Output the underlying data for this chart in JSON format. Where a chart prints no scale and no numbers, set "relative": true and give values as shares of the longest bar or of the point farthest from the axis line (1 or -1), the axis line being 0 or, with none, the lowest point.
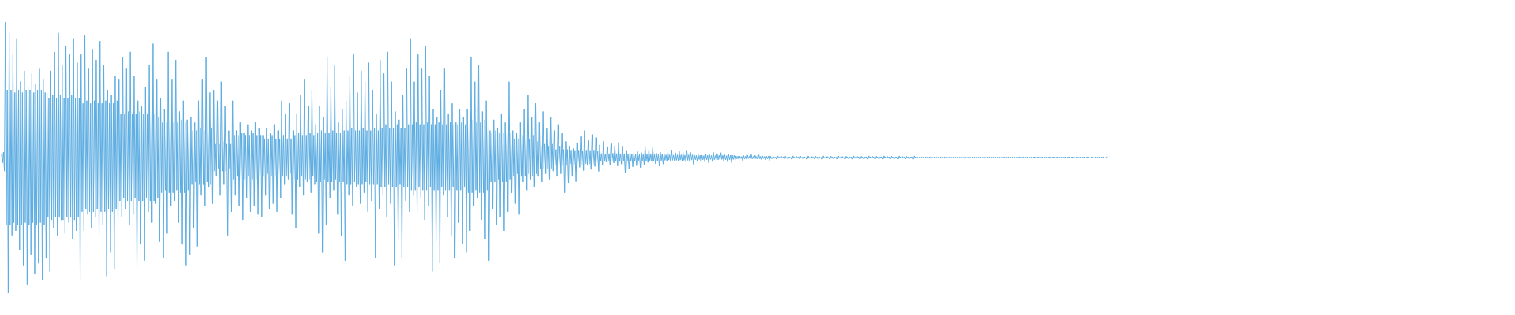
{
  "chart_data": {
    "type": "line",
    "relative": true,
    "color": "#5dade2",
    "marker": "none",
    "line_style": "solid",
    "categories": [
      null,
      null,
      null,
      null,
      null,
      null,
      null,
      null,
      null,
      null,
      null,
      null,
      null,
      null,
      null,
      null,
      null,
      null,
      null,
      null,
      null,
      null,
      null,
      null,
      null,
      null,
      null,
      null,
      null,
      null,
      null,
      null,
      null,
      null,
      null,
      null,
      null,
      null,
      null,
      null,
      null,
      null,
      null,
      null,
      null,
      null,
      null,
      null,
      null,
      null,
      null,
      null,
      null,
      null,
      null,
      null,
      null,
      null,
      null,
      null,
      null,
      null,
      null,
      null,
      null,
      null,
      null,
      null,
      null,
      null,
      null,
      null,
      null,
      null,
      null,
      null,
      null,
      null,
      null,
      null,
      null,
      null,
      null,
      null,
      null,
      null,
      null,
      null,
      null,
      null,
      null,
      null,
      null,
      null,
      null,
      null,
      null,
      null,
      null,
      null,
      null,
      null,
      null,
      null,
      null,
      null,
      null,
      null,
      null,
      null,
      null,
      null,
      null,
      null,
      null,
      null,
      null,
      null,
      null,
      null,
      null,
      null,
      null,
      null,
      null,
      null,
      null,
      null,
      null,
      null,
      null,
      null,
      null,
      null,
      null,
      null,
      null,
      null,
      null,
      null,
      null,
      null,
      null,
      null,
      null,
      null,
      null,
      null,
      null,
      null,
      null,
      null,
      null,
      null,
      null,
      null,
      null,
      null,
      null,
      null,
      null,
      null,
      null,
      null,
      null,
      null,
      null,
      null,
      null,
      null,
      null,
      null,
      null,
      null,
      null,
      null,
      null,
      null,
      null,
      null,
      null,
      null,
      null,
      null,
      null,
      null,
      null,
      null,
      null,
      null,
      null,
      null,
      null,
      null,
      null,
      null,
      null,
      null,
      null,
      null,
      null,
      null,
      null,
      null,
      null,
      null,
      null,
      null,
      null,
      null,
      null,
      null,
      null,
      null,
      null,
      null,
      null,
      null,
      null,
      null,
      null,
      null,
      null,
      null,
      null,
      null,
      null,
      null,
      null,
      null,
      null,
      null,
      null,
      null,
      null,
      null,
      null,
      null,
      null,
      null,
      null,
      null,
      null,
      null,
      null,
      null,
      null,
      null,
      null,
      null,
      null,
      null,
      null,
      null,
      null,
      null,
      null,
      null,
      null,
      null,
      null,
      null,
      null,
      null,
      null,
      null,
      null,
      null,
      null,
      null,
      null,
      null,
      null,
      null,
      null,
      null,
      null,
      null,
      null,
      null,
      null,
      null,
      null,
      null,
      null,
      null,
      null,
      null,
      null,
      null,
      null,
      null,
      null,
      null,
      null,
      null,
      null,
      null,
      null,
      null,
      null,
      null,
      null,
      null,
      null,
      null,
      null,
      null,
      null,
      null,
      null,
      null,
      null,
      null,
      null,
      null,
      null,
      null,
      null,
      null,
      null,
      null,
      null,
      null,
      null,
      null,
      null,
      null,
      null,
      null,
      null,
      null,
      null,
      null,
      null,
      null,
      null,
      null,
      null,
      null,
      null,
      null,
      null,
      null,
      null,
      null,
      null,
      null,
      null,
      null,
      null,
      null,
      null,
      null,
      null,
      null,
      null,
      null,
      null,
      null,
      null,
      null,
      null,
      null,
      null,
      null,
      null,
      null,
      null,
      null,
      null,
      null,
      null,
      null,
      null,
      null,
      null,
      null,
      null,
      null,
      null,
      null,
      null,
      null,
      null,
      null,
      null,
      null,
      null,
      null,
      null,
      null,
      null,
      null,
      null,
      null,
      null,
      null,
      null,
      null,
      null,
      null,
      null,
      null,
      null,
      null,
      null,
      null,
      null,
      null,
      null,
      null,
      null,
      null,
      null,
      null,
      null,
      null,
      null,
      null,
      null,
      null,
      null,
      null,
      null,
      null,
      null,
      null,
      null,
      null,
      null,
      null,
      null,
      null,
      null,
      null,
      null,
      null,
      null,
      null,
      null,
      null,
      null,
      null,
      null,
      null,
      null,
      null,
      null,
      null,
      null,
      null,
      null,
      null,
      null,
      null,
      null,
      null,
      null,
      null,
      null,
      null,
      null,
      null,
      null,
      null,
      null,
      null,
      null,
      null,
      null,
      null,
      null,
      null,
      null,
      null,
      null,
      null,
      null,
      null,
      null,
      null,
      null,
      null,
      null,
      null,
      null,
      null,
      null,
      null,
      null,
      null,
      null,
      null,
      null,
      null,
      null,
      null,
      null,
      null,
      null,
      null,
      null,
      null,
      null,
      null,
      null,
      null,
      null,
      null,
      null,
      null,
      null,
      null,
      null,
      null,
      null,
      null,
      null,
      null,
      null,
      null,
      null,
      null,
      null,
      null,
      null,
      null,
      null,
      null,
      null,
      null,
      null,
      null,
      null,
      null,
      null,
      null,
      null,
      null,
      null,
      null,
      null,
      null,
      null,
      null,
      null,
      null,
      null,
      null,
      null,
      null,
      null,
      null,
      null,
      null,
      null,
      null,
      null,
      null,
      null,
      null,
      null,
      null,
      null,
      null,
      null,
      null,
      null,
      null,
      null,
      null,
      null,
      null,
      null,
      null,
      null,
      null,
      null,
      null,
      null,
      null,
      null,
      null,
      null,
      null,
      null,
      null,
      null,
      null,
      null,
      null,
      null,
      null,
      null,
      null,
      null,
      null,
      null,
      null,
      null,
      null,
      null,
      null,
      null,
      null,
      null,
      null,
      null,
      null,
      null,
      null,
      null,
      null,
      null,
      null,
      null,
      null,
      null,
      null,
      null,
      null,
      null,
      null,
      null,
      null,
      null,
      null,
      null,
      null,
      null,
      null,
      null,
      null,
      null,
      null,
      null,
      null,
      null,
      null,
      null,
      null,
      null,
      null,
      null,
      null,
      null,
      null,
      null,
      null,
      null,
      null,
      null,
      null,
      null,
      null,
      null,
      null,
      null,
      null,
      null,
      null,
      null,
      null,
      null,
      null,
      null,
      null,
      null,
      null,
      null,
      null,
      null,
      null,
      null,
      null,
      null,
      null,
      null,
      null,
      null,
      null,
      null,
      null,
      null,
      null,
      null,
      null,
      null,
      null,
      null,
      null,
      null,
      null,
      null,
      null,
      null,
      null,
      null,
      null,
      null,
      null,
      null,
      null,
      null,
      null,
      null,
      null,
      null,
      null,
      null,
      null,
      null,
      null,
      null,
      null,
      null,
      null,
      null,
      null,
      null,
      null,
      null,
      null,
      null,
      null,
      null,
      null,
      null,
      null,
      null,
      null,
      null,
      null,
      null,
      null,
      null,
      null,
      null,
      null,
      null,
      null,
      null,
      null,
      null,
      null,
      null,
      null,
      null,
      null,
      null,
      null,
      null,
      null,
      null,
      null,
      null,
      null,
      null,
      null,
      null,
      null,
      null,
      null,
      null,
      null,
      null,
      null,
      null,
      null,
      null,
      null,
      null,
      null,
      null,
      null,
      null,
      null,
      null,
      null,
      null,
      null,
      null,
      null,
      null,
      null,
      null,
      null,
      null,
      null,
      null,
      null,
      null,
      null,
      null,
      null,
      null,
      null,
      null,
      null,
      null,
      null,
      null,
      null,
      null,
      null,
      null,
      null,
      null,
      null,
      null,
      null,
      null,
      null,
      null,
      null,
      null,
      null,
      null,
      null,
      null,
      null,
      null,
      null,
      null,
      null,
      null,
      null,
      null,
      null,
      null,
      null,
      null,
      null,
      null,
      null,
      null,
      null,
      null,
      null,
      null,
      null,
      null,
      null,
      null,
      null,
      null,
      null,
      null,
      null,
      null,
      null,
      null,
      null,
      null,
      null,
      null,
      null,
      null,
      null,
      null,
      null,
      null,
      null,
      null,
      null,
      null,
      null,
      null,
      null,
      null,
      null,
      null,
      null,
      null,
      null,
      null,
      null,
      null,
      null,
      null,
      null,
      null,
      null,
      null,
      null,
      null,
      null,
      null,
      null,
      null,
      null,
      null,
      null,
      null,
      null,
      null,
      null,
      null,
      null,
      null,
      null,
      null,
      null,
      null,
      null,
      null,
      null,
      null,
      null,
      null,
      null,
      null,
      null,
      null,
      null,
      null,
      null,
      null,
      null,
      null,
      null,
      null,
      null,
      null,
      null,
      null,
      null,
      null,
      null,
      null,
      null,
      null,
      null,
      null,
      null,
      null,
      null,
      null,
      null,
      null,
      null,
      null,
      null,
      null,
      null,
      null,
      null,
      null,
      null,
      null,
      null,
      null,
      null,
      null,
      null,
      null,
      null,
      null,
      null,
      null,
      null,
      null,
      null,
      null,
      null,
      null,
      null,
      null,
      null,
      null,
      null,
      null,
      null,
      null,
      null,
      null,
      null,
      null,
      null,
      null,
      null,
      null,
      null,
      null,
      null,
      null,
      null,
      null,
      null,
      null,
      null,
      null,
      null,
      null,
      null,
      null,
      null,
      null,
      null,
      null,
      null,
      null,
      null,
      null,
      null,
      null,
      null,
      null,
      null,
      null,
      null,
      null,
      null,
      null,
      null,
      null,
      null,
      null,
      null,
      null,
      null,
      null,
      null,
      null,
      null,
      null,
      null,
      null,
      null,
      null,
      null,
      null,
      null,
      null,
      null,
      null,
      null,
      null,
      null,
      null,
      null,
      null,
      null,
      null,
      null,
      null,
      null,
      null,
      null,
      null,
      null,
      null,
      null,
      null,
      null,
      null,
      null,
      null,
      null,
      null,
      null,
      null,
      null,
      null,
      null,
      null,
      null,
      null,
      null,
      null,
      null,
      null,
      null,
      null,
      null,
      null,
      null,
      null,
      null,
      null,
      null,
      null,
      null,
      null,
      null,
      null,
      null,
      null,
      null,
      null,
      null,
      null,
      null,
      null,
      null,
      null,
      null,
      null,
      null,
      null,
      null,
      null,
      null,
      null,
      null,
      null,
      null,
      null,
      null,
      null,
      null,
      null,
      null,
      null,
      null,
      null,
      null,
      null,
      null,
      null,
      null,
      null,
      null,
      null,
      null,
      null,
      null,
      null,
      null,
      null,
      null,
      null,
      null,
      null,
      null,
      null,
      null,
      null,
      null,
      null,
      null,
      null,
      null,
      null,
      null,
      null,
      null,
      null,
      null,
      null,
      null,
      null,
      null,
      null,
      null,
      null,
      null,
      null,
      null,
      null,
      null,
      null,
      null,
      null,
      null,
      null,
      null,
      null
    ],
    "values": [
      0.51,
      0.48,
      0.52,
      0.45,
      1,
      0.25,
      0.75,
      0,
      0.96,
      0.25,
      0.75,
      0.21,
      0.88,
      0.26,
      0.74,
      0.23,
      0.94,
      0.25,
      0.75,
      0.16,
      0.78,
      0.25,
      0.74,
      0.1,
      0.82,
      0.26,
      0.75,
      0.03,
      0.76,
      0.25,
      0.75,
      0.14,
      0.81,
      0.26,
      0.74,
      0.07,
      0.77,
      0.25,
      0.75,
      0.11,
      0.83,
      0.26,
      0.75,
      0.05,
      0.79,
      0.25,
      0.74,
      0.13,
      0.74,
      0.28,
      0.72,
      0.08,
      0.82,
      0.27,
      0.73,
      0.24,
      0.89,
      0.28,
      0.72,
      0.21,
      0.96,
      0.28,
      0.73,
      0.27,
      0.84,
      0.27,
      0.72,
      0.22,
      0.91,
      0.28,
      0.72,
      0.26,
      0.88,
      0.28,
      0.73,
      0.2,
      0.94,
      0.27,
      0.72,
      0.23,
      0.85,
      0.28,
      0.72,
      0.05,
      0.88,
      0.3,
      0.7,
      0.23,
      0.95,
      0.31,
      0.71,
      0.29,
      0.83,
      0.3,
      0.7,
      0.24,
      0.9,
      0.3,
      0.71,
      0.28,
      0.86,
      0.31,
      0.7,
      0.21,
      0.93,
      0.3,
      0.7,
      0.25,
      0.84,
      0.3,
      0.71,
      0.06,
      0.75,
      0.31,
      0.7,
      0.15,
      0.73,
      0.3,
      0.7,
      0.09,
      0.8,
      0.31,
      0.71,
      0.26,
      0.79,
      0.34,
      0.66,
      0.28,
      0.87,
      0.35,
      0.66,
      0.31,
      0.83,
      0.34,
      0.67,
      0.25,
      0.89,
      0.34,
      0.66,
      0.29,
      0.8,
      0.35,
      0.66,
      0.09,
      0.71,
      0.34,
      0.67,
      0.18,
      0.69,
      0.34,
      0.66,
      0.12,
      0.76,
      0.35,
      0.66,
      0.3,
      0.84,
      0.34,
      0.67,
      0.26,
      0.92,
      0.34,
      0.66,
      0.33,
      0.79,
      0.35,
      0.65,
      0.19,
      0.72,
      0.37,
      0.63,
      0.13,
      0.68,
      0.38,
      0.63,
      0.22,
      0.89,
      0.37,
      0.64,
      0.32,
      0.79,
      0.37,
      0.63,
      0.34,
      0.86,
      0.38,
      0.63,
      0.26,
      0.67,
      0.37,
      0.64,
      0.18,
      0.71,
      0.37,
      0.63,
      0.1,
      0.64,
      0.38,
      0.62,
      0.14,
      0.65,
      0.4,
      0.6,
      0.24,
      0.63,
      0.41,
      0.6,
      0.17,
      0.71,
      0.4,
      0.61,
      0.36,
      0.79,
      0.4,
      0.6,
      0.32,
      0.87,
      0.41,
      0.6,
      0.39,
      0.74,
      0.4,
      0.61,
      0.33,
      0.75,
      0.45,
      0.55,
      0.43,
      0.71,
      0.46,
      0.55,
      0.36,
      0.78,
      0.45,
      0.56,
      0.4,
      0.69,
      0.45,
      0.55,
      0.21,
      0.6,
      0.46,
      0.55,
      0.3,
      0.71,
      0.42,
      0.58,
      0.36,
      0.6,
      0.43,
      0.58,
      0.32,
      0.63,
      0.42,
      0.59,
      0.27,
      0.59,
      0.42,
      0.58,
      0.35,
      0.62,
      0.43,
      0.58,
      0.3,
      0.6,
      0.42,
      0.59,
      0.32,
      0.63,
      0.42,
      0.58,
      0.29,
      0.61,
      0.43,
      0.58,
      0.28,
      0.58,
      0.43,
      0.57,
      0.36,
      0.61,
      0.44,
      0.57,
      0.31,
      0.59,
      0.43,
      0.58,
      0.33,
      0.62,
      0.43,
      0.57,
      0.3,
      0.6,
      0.44,
      0.57,
      0.35,
      0.71,
      0.43,
      0.58,
      0.4,
      0.66,
      0.43,
      0.57,
      0.42,
      0.7,
      0.44,
      0.57,
      0.29,
      0.6,
      0.42,
      0.58,
      0.24,
      0.66,
      0.42,
      0.59,
      0.39,
      0.73,
      0.43,
      0.58,
      0.36,
      0.79,
      0.42,
      0.58,
      0.41,
      0.69,
      0.42,
      0.59,
      0.37,
      0.75,
      0.43,
      0.58,
      0.4,
      0.62,
      0.41,
      0.59,
      0.22,
      0.69,
      0.41,
      0.6,
      0.15,
      0.65,
      0.42,
      0.59,
      0.25,
      0.87,
      0.41,
      0.59,
      0.35,
      0.76,
      0.41,
      0.6,
      0.38,
      0.84,
      0.42,
      0.59,
      0.29,
      0.63,
      0.41,
      0.59,
      0.21,
      0.68,
      0.41,
      0.6,
      0.12,
      0.71,
      0.4,
      0.6,
      0.36,
      0.8,
      0.4,
      0.61,
      0.32,
      0.88,
      0.41,
      0.6,
      0.39,
      0.74,
      0.4,
      0.6,
      0.33,
      0.82,
      0.4,
      0.61,
      0.37,
      0.78,
      0.41,
      0.6,
      0.3,
      0.85,
      0.4,
      0.6,
      0.34,
      0.75,
      0.4,
      0.61,
      0.13,
      0.66,
      0.4,
      0.6,
      0.31,
      0.86,
      0.39,
      0.61,
      0.36,
      0.81,
      0.39,
      0.62,
      0.28,
      0.89,
      0.4,
      0.61,
      0.33,
      0.78,
      0.39,
      0.61,
      0.1,
      0.67,
      0.39,
      0.62,
      0.2,
      0.64,
      0.4,
      0.61,
      0.13,
      0.73,
      0.39,
      0.61,
      0.34,
      0.83,
      0.39,
      0.62,
      0.3,
      0.94,
      0.38,
      0.62,
      0.36,
      0.78,
      0.38,
      0.63,
      0.3,
      0.88,
      0.39,
      0.62,
      0.35,
      0.83,
      0.38,
      0.62,
      0.27,
      0.91,
      0.38,
      0.63,
      0.32,
      0.8,
      0.39,
      0.62,
      0.08,
      0.68,
      0.38,
      0.62,
      0.19,
      0.65,
      0.38,
      0.63,
      0.11,
      0.75,
      0.39,
      0.62,
      0.36,
      0.83,
      0.38,
      0.62,
      0.28,
      0.66,
      0.38,
      0.63,
      0.21,
      0.7,
      0.39,
      0.62,
      0.13,
      0.63,
      0.38,
      0.62,
      0.26,
      0.68,
      0.38,
      0.63,
      0.18,
      0.65,
      0.39,
      0.62,
      0.15,
      0.68,
      0.37,
      0.63,
      0.23,
      0.87,
      0.37,
      0.64,
      0.32,
      0.78,
      0.38,
      0.63,
      0.35,
      0.84,
      0.37,
      0.63,
      0.27,
      0.67,
      0.37,
      0.64,
      0.2,
      0.71,
      0.38,
      0.63,
      0.12,
      0.6,
      0.41,
      0.59,
      0.31,
      0.64,
      0.41,
      0.6,
      0.25,
      0.61,
      0.42,
      0.59,
      0.28,
      0.66,
      0.41,
      0.59,
      0.23,
      0.63,
      0.41,
      0.6,
      0.3,
      0.78,
      0.42,
      0.59,
      0.37,
      0.6,
      0.43,
      0.57,
      0.33,
      0.59,
      0.44,
      0.57,
      0.29,
      0.63,
      0.43,
      0.58,
      0.41,
      0.68,
      0.43,
      0.57,
      0.38,
      0.73,
      0.44,
      0.57,
      0.42,
      0.65,
      0.43,
      0.58,
      0.39,
      0.7,
      0.44,
      0.56,
      0.43,
      0.63,
      0.46,
      0.54,
      0.41,
      0.67,
      0.46,
      0.55,
      0.44,
      0.61,
      0.46,
      0.54,
      0.42,
      0.65,
      0.46,
      0.55,
      0.45,
      0.6,
      0.47,
      0.53,
      0.43,
      0.62,
      0.47,
      0.54,
      0.44,
      0.59,
      0.47,
      0.53,
      0.37,
      0.56,
      0.47,
      0.53,
      0.404,
      0.54,
      0.477,
      0.525,
      0.43,
      0.533,
      0.475,
      0.524,
      0.411,
      0.555,
      0.476,
      0.525,
      0.464,
      0.578,
      0.475,
      0.523,
      0.452,
      0.6,
      0.477,
      0.525,
      0.471,
      0.563,
      0.476,
      0.524,
      0.456,
      0.585,
      0.475,
      0.525,
      0.467,
      0.574,
      0.477,
      0.523,
      0.449,
      0.547,
      0.486,
      0.515,
      0.471,
      0.56,
      0.485,
      0.514,
      0.483,
      0.538,
      0.486,
      0.515,
      0.474,
      0.551,
      0.485,
      0.516,
      0.48,
      0.544,
      0.486,
      0.515,
      0.469,
      0.556,
      0.485,
      0.514,
      0.476,
      0.54,
      0.486,
      0.515,
      0.442,
      0.524,
      0.485,
      0.514,
      0.458,
      0.52,
      0.486,
      0.514,
      0.466,
      0.515,
      0.488,
      0.512,
      0.47,
      0.522,
      0.489,
      0.512,
      0.463,
      0.518,
      0.488,
      0.511,
      0.473,
      0.539,
      0.488,
      0.512,
      0.482,
      0.529,
      0.489,
      0.512,
      0.485,
      0.536,
      0.488,
      0.511,
      0.477,
      0.516,
      0.488,
      0.512,
      0.468,
      0.52,
      0.489,
      0.512,
      0.476,
      0.516,
      0.49,
      0.51,
      0.488,
      0.521,
      0.491,
      0.51,
      0.485,
      0.526,
      0.49,
      0.509,
      0.489,
      0.518,
      0.49,
      0.51,
      0.486,
      0.523,
      0.491,
      0.51,
      0.488,
      0.52,
      0.49,
      0.509,
      0.484,
      0.524,
      0.49,
      0.51,
      0.487,
      0.519,
      0.491,
      0.51,
      0.475,
      0.509,
      0.492,
      0.508,
      0.486,
      0.511,
      0.493,
      0.508,
      0.482,
      0.509,
      0.492,
      0.507,
      0.484,
      0.512,
      0.492,
      0.508,
      0.481,
      0.51,
      0.493,
      0.508,
      0.485,
      0.519,
      0.492,
      0.507,
      0.49,
      0.515,
      0.492,
      0.508,
      0.491,
      0.518,
      0.493,
      0.508,
      0.487,
      0.51,
      0.492,
      0.507,
      0.484,
      0.512,
      0.492,
      0.508,
      0.48,
      0.509,
      0.493,
      0.508,
      0.49,
      0.506,
      0.495,
      0.505,
      0.492,
      0.505,
      0.496,
      0.504,
      0.488,
      0.507,
      0.495,
      0.505,
      0.494,
      0.509,
      0.496,
      0.505,
      0.495,
      0.511,
      0.495,
      0.504,
      0.494,
      0.508,
      0.496,
      0.505,
      0.495,
      0.51,
      0.495,
      0.505,
      0.493,
      0.506,
      0.496,
      0.504,
      0.491,
      0.505,
      0.495,
      0.505,
      0.489,
      0.506,
      0.496,
      0.504,
      0.496,
      0.503,
      0.497,
      0.503,
      0.494,
      0.506,
      0.497,
      0.503,
      0.497,
      0.504,
      0.497,
      0.503,
      0.495,
      0.505,
      0.497,
      0.503,
      0.496,
      0.503,
      0.497,
      0.503,
      0.494,
      0.506,
      0.497,
      0.503,
      0.497,
      0.504,
      0.497,
      0.503,
      0.495,
      0.505,
      0.497,
      0.503,
      0.496,
      0.503,
      0.497,
      0.503,
      0.494,
      0.506,
      0.497,
      0.503,
      0.497,
      0.504,
      0.497,
      0.503,
      0.495,
      0.505,
      0.497,
      0.503,
      0.496,
      0.503,
      0.497,
      0.503,
      0.494,
      0.506,
      0.497,
      0.503,
      0.497,
      0.504,
      0.497,
      0.503,
      0.495,
      0.505,
      0.497,
      0.503,
      0.496,
      0.503,
      0.497,
      0.503,
      0.494,
      0.506,
      0.497,
      0.503,
      0.497,
      0.504,
      0.497,
      0.503,
      0.495,
      0.505,
      0.497,
      0.503,
      0.496,
      0.503,
      0.497,
      0.503,
      0.494,
      0.506,
      0.497,
      0.503,
      0.497,
      0.504,
      0.497,
      0.503,
      0.495,
      0.505,
      0.497,
      0.503,
      0.496,
      0.503,
      0.497,
      0.503,
      0.494,
      0.506,
      0.497,
      0.503,
      0.497,
      0.504,
      0.497,
      0.503,
      0.495,
      0.505,
      0.497,
      0.503,
      0.496,
      0.503,
      0.497,
      0.503,
      0.494,
      0.506,
      0.497,
      0.503,
      0.497,
      0.504,
      0.497,
      0.503,
      0.495,
      0.505,
      0.497,
      0.503,
      0.496,
      0.503,
      0.497,
      0.503,
      0.494,
      0.506,
      0.497,
      0.503,
      0.497,
      0.504,
      0.497,
      0.503,
      0.495,
      0.505,
      0.497,
      0.503,
      0.496,
      0.503,
      0.497,
      0.503,
      0.494,
      0.506,
      0.497,
      0.503,
      0.497,
      0.503,
      0.498,
      0.502,
      0.497,
      0.503,
      0.498,
      0.502,
      0.497,
      0.503,
      0.498,
      0.502,
      0.497,
      0.503,
      0.498,
      0.502,
      0.497,
      0.503,
      0.498,
      0.502,
      0.497,
      0.503,
      0.498,
      0.502,
      0.497,
      0.503,
      0.498,
      0.502,
      0.497,
      0.503,
      0.498,
      0.502,
      0.497,
      0.503,
      0.498,
      0.502,
      0.497,
      0.503,
      0.498,
      0.502,
      0.497,
      0.503,
      0.498,
      0.502,
      0.497,
      0.503,
      0.498,
      0.502,
      0.497,
      0.503,
      0.498,
      0.502,
      0.497,
      0.503,
      0.498,
      0.502,
      0.497,
      0.503,
      0.498,
      0.502,
      0.497,
      0.503,
      0.498,
      0.502,
      0.497,
      0.503,
      0.498,
      0.502,
      0.497,
      0.503,
      0.498,
      0.502,
      0.497,
      0.503,
      0.498,
      0.502,
      0.497,
      0.503,
      0.498,
      0.502,
      0.497,
      0.503,
      0.498,
      0.502,
      0.497,
      0.503,
      0.498,
      0.502,
      0.497,
      0.503,
      0.498,
      0.502,
      0.497,
      0.503,
      0.498,
      0.502,
      0.497,
      0.503,
      0.498,
      0.502,
      0.497,
      0.503,
      0.498,
      0.502,
      0.497,
      0.503,
      0.498,
      0.502,
      0.497,
      0.503,
      0.498,
      0.502,
      0.497,
      0.503,
      0.498,
      0.502,
      0.497,
      0.503,
      0.498,
      0.502,
      0.497,
      0.503,
      0.498,
      0.502,
      0.497,
      0.503,
      0.498,
      0.502,
      0.497,
      0.503,
      0.498,
      0.502,
      0.497,
      0.503,
      0.498,
      0.502,
      0.497,
      0.503,
      0.498,
      0.502,
      0.497,
      0.503,
      0.498,
      0.502,
      0.497,
      0.503,
      0.498,
      0.502,
      0.497,
      0.503,
      0.498,
      0.502,
      0.497,
      0.503,
      0.498,
      0.502,
      0.497,
      0.503,
      0.498,
      0.502,
      0.497,
      0.503,
      0.498,
      0.502,
      0.497,
      0.503,
      0.498,
      0.502,
      0.497,
      0.503,
      0.498,
      0.502,
      0.497,
      0.503,
      0.498,
      0.502,
      0.497,
      0.503,
      0.498,
      0.502,
      0.497,
      0.503,
      0.498,
      0.502,
      0.497,
      0.503,
      0.498,
      0.502,
      0.497,
      0.503,
      0.498,
      0.502,
      0.497,
      0.503,
      0.498,
      0.502,
      0.497,
      0.503,
      0.498,
      0.502,
      0.497,
      0.503
    ]
  }
}
